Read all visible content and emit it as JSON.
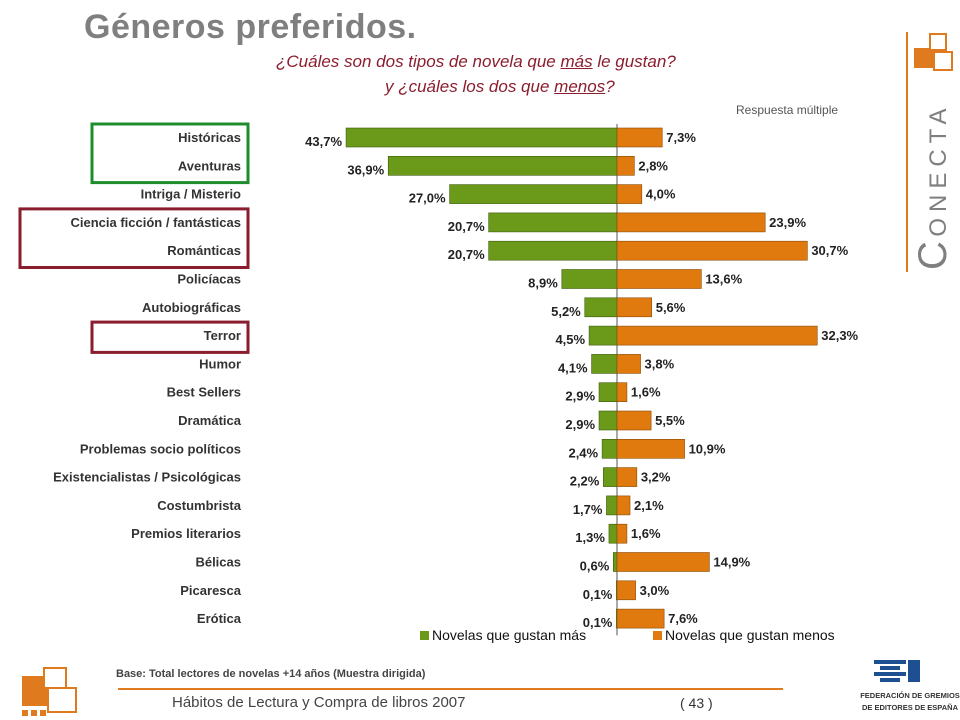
{
  "header": {
    "title": "Géneros preferidos.",
    "question_line1_pre": "¿Cuáles son dos tipos de novela que ",
    "question_line1_em": "más",
    "question_line1_post": " le gustan?",
    "question_line2_pre": "y ¿cuáles los dos que ",
    "question_line2_em": "menos",
    "question_line2_post": "?",
    "note": "Respuesta múltiple"
  },
  "brand": {
    "conecta_first": "C",
    "conecta_rest": "ONECTA"
  },
  "colors": {
    "green": "#6b9a1a",
    "orange": "#e07a0f",
    "highlight_green": "#1f8c2e",
    "highlight_red": "#8b1e2e",
    "accent": "#e07a1f"
  },
  "chart_data": {
    "type": "bar",
    "orientation": "horizontal-diverging",
    "categories": [
      "Históricas",
      "Aventuras",
      "Intriga / Misterio",
      "Ciencia ficción / fantásticas",
      "Románticas",
      "Policíacas",
      "Autobiográficas",
      "Terror",
      "Humor",
      "Best Sellers",
      "Dramática",
      "Problemas socio políticos",
      "Existencialistas / Psicológicas",
      "Costumbrista",
      "Premios literarios",
      "Bélicas",
      "Picaresca",
      "Erótica"
    ],
    "series": [
      {
        "name": "Novelas que gustan más",
        "color": "green",
        "direction": "left",
        "values": [
          43.7,
          36.9,
          27.0,
          20.7,
          20.7,
          8.9,
          5.2,
          4.5,
          4.1,
          2.9,
          2.9,
          2.4,
          2.2,
          1.7,
          1.3,
          0.6,
          0.1,
          0.1
        ],
        "labels": [
          "43,7%",
          "36,9%",
          "27,0%",
          "20,7%",
          "20,7%",
          "8,9%",
          "5,2%",
          "4,5%",
          "4,1%",
          "2,9%",
          "2,9%",
          "2,4%",
          "2,2%",
          "1,7%",
          "1,3%",
          "0,6%",
          "0,1%",
          "0,1%"
        ]
      },
      {
        "name": "Novelas que gustan menos",
        "color": "orange",
        "direction": "right",
        "values": [
          7.3,
          2.8,
          4.0,
          23.9,
          30.7,
          13.6,
          5.6,
          32.3,
          3.8,
          1.6,
          5.5,
          10.9,
          3.2,
          2.1,
          1.6,
          14.9,
          3.0,
          7.6
        ],
        "labels": [
          "7,3%",
          "2,8%",
          "4,0%",
          "23,9%",
          "30,7%",
          "13,6%",
          "5,6%",
          "32,3%",
          "3,8%",
          "1,6%",
          "5,5%",
          "10,9%",
          "3,2%",
          "2,1%",
          "1,6%",
          "14,9%",
          "3,0%",
          "7,6%"
        ]
      }
    ],
    "highlight_groups": [
      {
        "color": "highlight_green",
        "categories": [
          "Históricas",
          "Aventuras"
        ]
      },
      {
        "color": "highlight_red",
        "categories": [
          "Ciencia ficción / fantásticas",
          "Románticas"
        ]
      },
      {
        "color": "highlight_red",
        "categories": [
          "Terror"
        ]
      }
    ],
    "legend_position": "bottom",
    "grid": false
  },
  "footer": {
    "base_note": "Base: Total lectores de novelas +14 años (Muestra dirigida)",
    "text": "Hábitos de Lectura y Compra de libros 2007",
    "page": "( 43 )",
    "federation_line1": "FEDERACIÓN DE GREMIOS",
    "federation_line2": "DE EDITORES DE ESPAÑA"
  }
}
